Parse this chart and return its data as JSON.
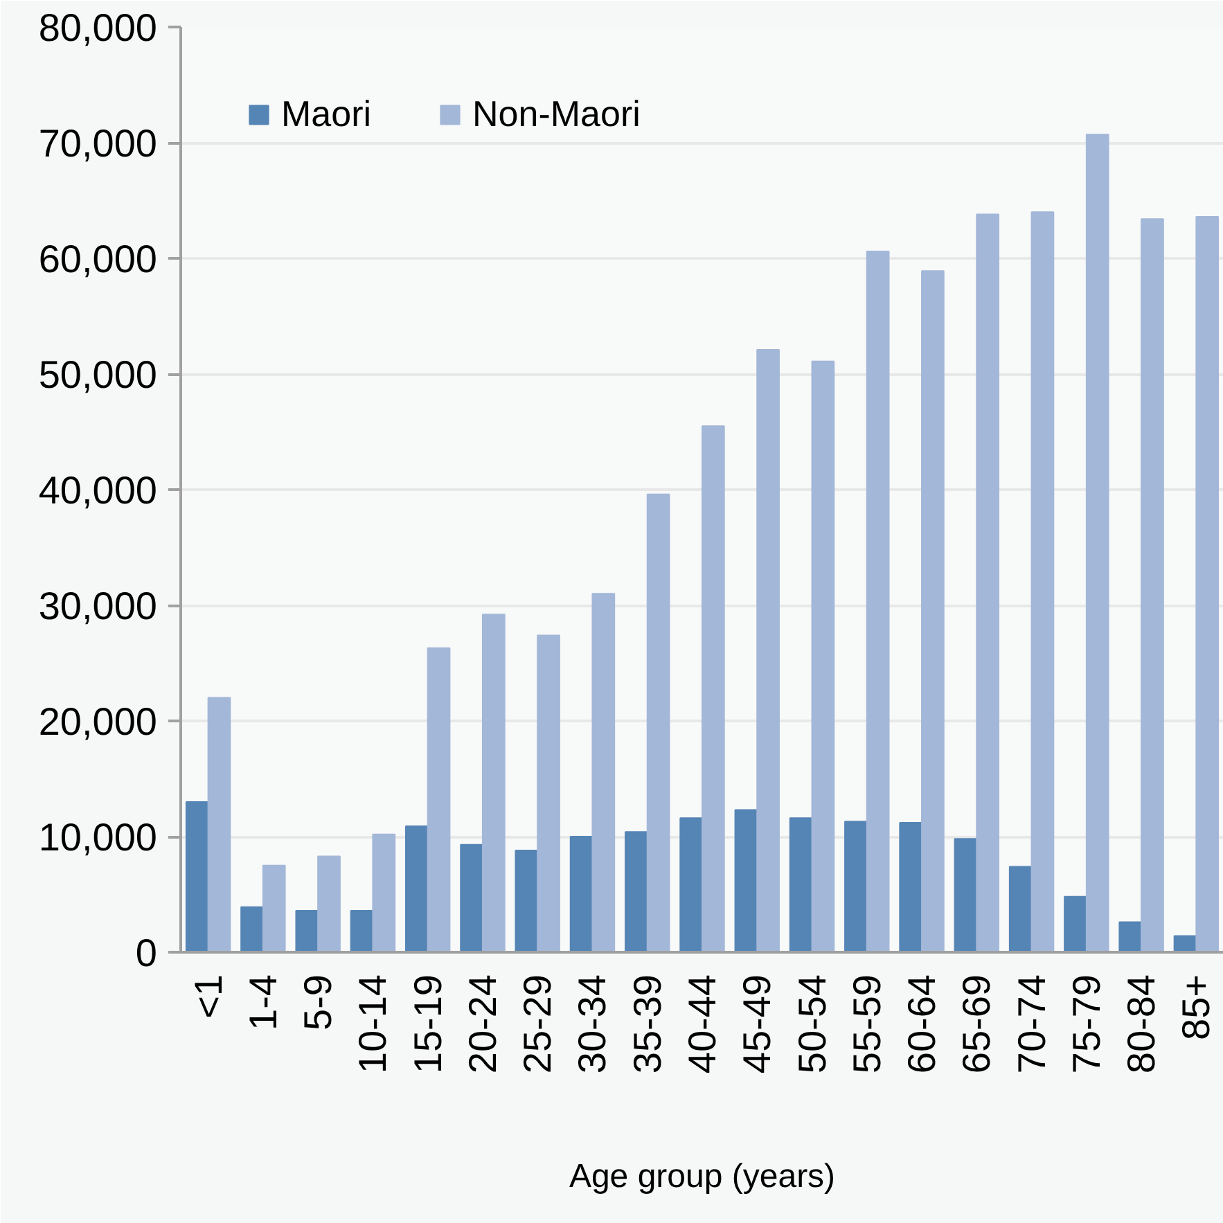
{
  "chart_data": {
    "type": "bar",
    "xlabel": "Age group (years)",
    "categories": [
      "<1",
      "1-4",
      "5-9",
      "10-14",
      "15-19",
      "20-24",
      "25-29",
      "30-34",
      "35-39",
      "40-44",
      "45-49",
      "50-54",
      "55-59",
      "60-64",
      "65-69",
      "70-74",
      "75-79",
      "80-84",
      "85+"
    ],
    "series": [
      {
        "name": "Maori",
        "color": "#5585b5",
        "values": [
          13000,
          3900,
          3600,
          3600,
          10900,
          9300,
          8800,
          10000,
          10400,
          11600,
          12300,
          11600,
          11300,
          11200,
          9800,
          7400,
          4800,
          2600,
          1400
        ]
      },
      {
        "name": "Non-Maori",
        "color": "#a3b7d8",
        "values": [
          22000,
          7500,
          8300,
          10200,
          26300,
          29200,
          27400,
          31000,
          39600,
          45500,
          52100,
          51100,
          60600,
          58900,
          63800,
          64000,
          70700,
          63400,
          63600
        ]
      }
    ],
    "ylim": [
      0,
      80000
    ],
    "yticks": [
      0,
      {
        "value": 10000,
        "label": "10,000"
      },
      {
        "value": 20000,
        "label": "20,000"
      },
      {
        "value": 30000,
        "label": "30,000"
      },
      {
        "value": 40000,
        "label": "40,000"
      },
      {
        "value": 50000,
        "label": "50,000"
      },
      {
        "value": 60000,
        "label": "60,000"
      },
      {
        "value": 70000,
        "label": "70,000"
      },
      {
        "value": 80000,
        "label": "80,000"
      }
    ],
    "grid": "y",
    "legend": "top left"
  }
}
